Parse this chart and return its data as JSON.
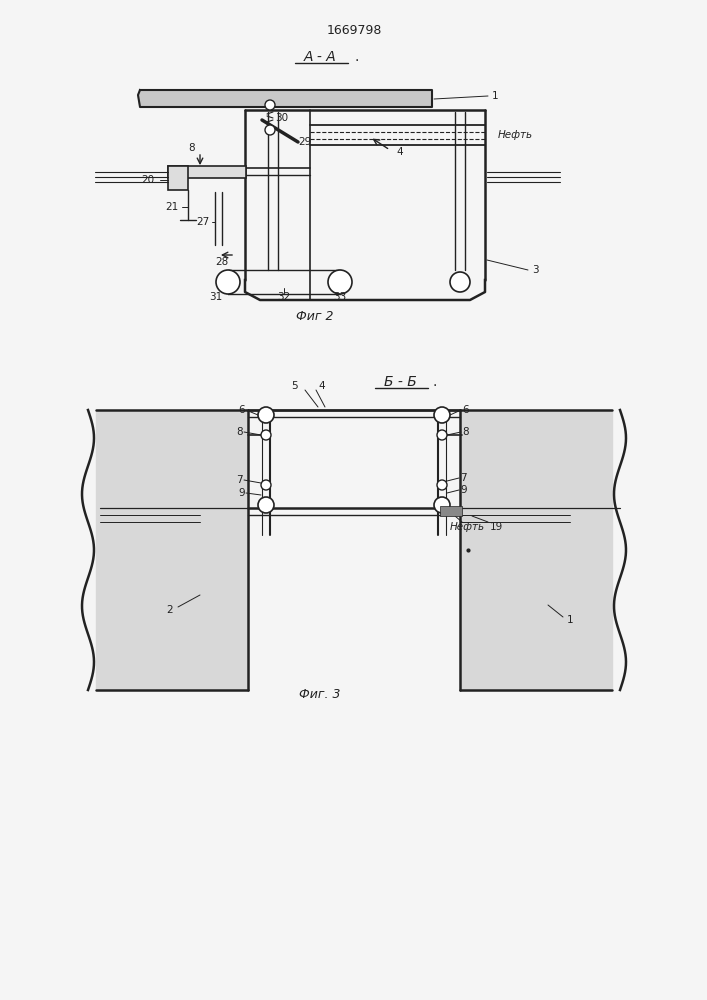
{
  "title": "1669798",
  "bg_color": "#f0f0f0",
  "line_color": "#222222",
  "text_color": "#222222",
  "fig2_caption": "Фиг 2",
  "fig3_caption": "Фиг. 3",
  "number_fontsize": 7.5,
  "caption_fontsize": 9,
  "title_fontsize": 9
}
